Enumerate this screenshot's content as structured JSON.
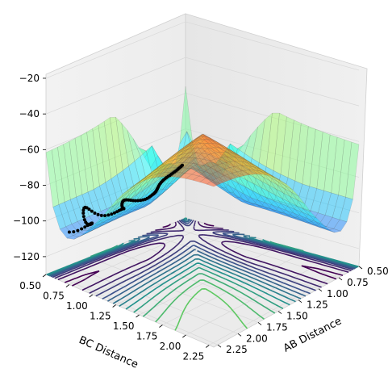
{
  "chart_data": {
    "type": "surface3d",
    "description_free": true,
    "xlabel": "AB Distance",
    "ylabel": "BC Distance",
    "zlabel": "",
    "x_ticks": [
      "0.50",
      "0.75",
      "1.00",
      "1.25",
      "1.50",
      "1.75",
      "2.00",
      "2.25"
    ],
    "y_ticks": [
      "0.50",
      "0.75",
      "1.00",
      "1.25",
      "1.50",
      "1.75",
      "2.00",
      "2.25"
    ],
    "z_ticks": [
      "−20",
      "−40",
      "−60",
      "−80",
      "−100",
      "−120"
    ],
    "xlim": [
      0.5,
      2.3
    ],
    "ylim": [
      0.5,
      2.3
    ],
    "zlim": [
      -130,
      -20
    ],
    "surface_colormap": "jet",
    "contour_colormap": "viridis",
    "grid": true,
    "trajectory": {
      "marker": "black dots",
      "description": "reaction path"
    }
  }
}
